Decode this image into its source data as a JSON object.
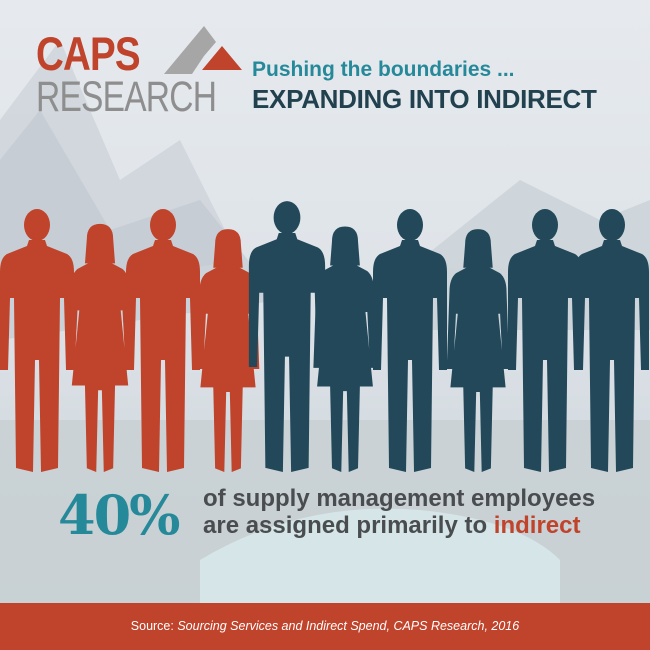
{
  "logo": {
    "line1": "CAPS",
    "line2": "RESEARCH"
  },
  "header": {
    "tagline": "Pushing the boundaries ...",
    "headline": "EXPANDING INTO INDIRECT"
  },
  "pictograph": {
    "total": 10,
    "highlighted": 4,
    "highlight_color": "#c0432b",
    "base_color": "#22485a",
    "figures": [
      "man",
      "woman",
      "man",
      "woman",
      "man",
      "woman",
      "man",
      "woman",
      "man",
      "man"
    ]
  },
  "stat": {
    "value": "40%",
    "line1": "of supply management employees",
    "line2_prefix": "are assigned primarily to ",
    "line2_highlight": "indirect"
  },
  "footer": {
    "prefix": "Source: ",
    "citation": "Sourcing Services and Indirect Spend, CAPS Research, 2016"
  },
  "colors": {
    "accent": "#c0432b",
    "teal": "#26899a",
    "navy": "#22414f"
  }
}
